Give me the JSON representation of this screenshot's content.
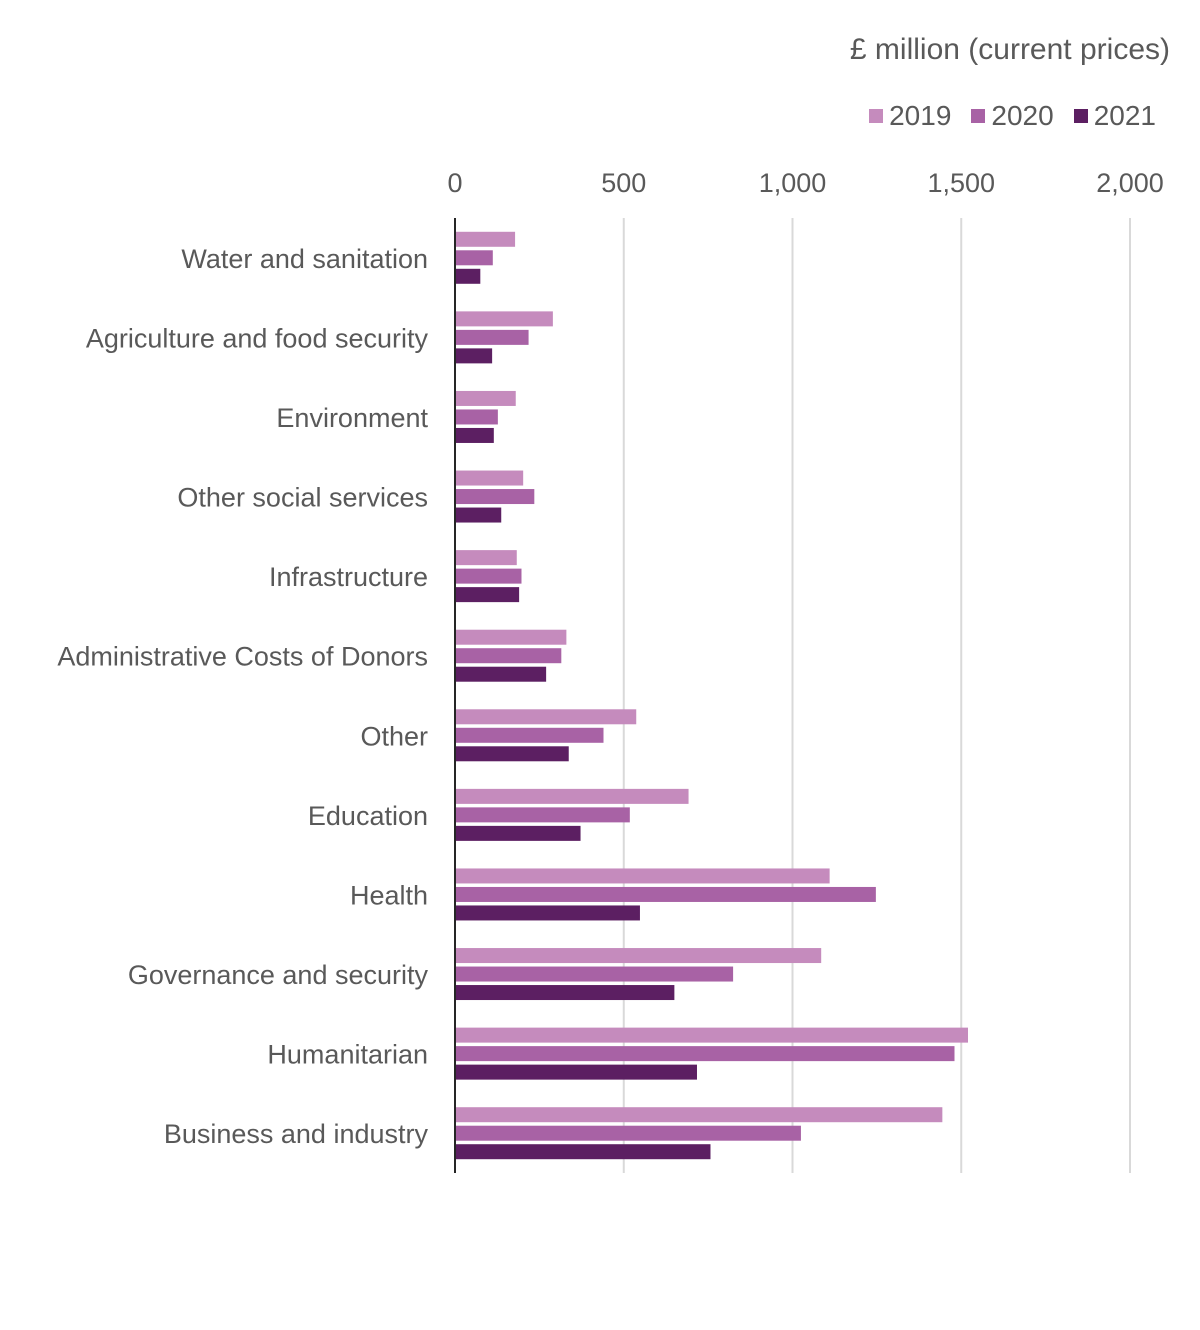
{
  "chart_data": {
    "type": "bar",
    "orientation": "horizontal",
    "unit_label": "£ million (current prices)",
    "xlim": [
      0,
      2000
    ],
    "x_ticks": [
      "0",
      "500",
      "1,000",
      "1,500",
      "2,000"
    ],
    "x_tick_values": [
      0,
      500,
      1000,
      1500,
      2000
    ],
    "grid": true,
    "legend_position": "top-right",
    "categories": [
      "Water and sanitation",
      "Agriculture and food security",
      "Environment",
      "Other social services",
      "Infrastructure",
      "Administrative Costs of Donors",
      "Other",
      "Education",
      "Health",
      "Governance and security",
      "Humanitarian",
      "Business and industry"
    ],
    "series": [
      {
        "name": "2019",
        "color": "#c58bbd",
        "values": [
          178,
          290,
          180,
          202,
          183,
          330,
          537,
          692,
          1110,
          1085,
          1520,
          1444
        ]
      },
      {
        "name": "2020",
        "color": "#a862a5",
        "values": [
          112,
          218,
          127,
          235,
          197,
          315,
          440,
          518,
          1247,
          824,
          1480,
          1025
        ]
      },
      {
        "name": "2021",
        "color": "#5c1f62",
        "values": [
          75,
          110,
          115,
          137,
          190,
          270,
          337,
          372,
          548,
          650,
          717,
          757
        ]
      }
    ]
  }
}
